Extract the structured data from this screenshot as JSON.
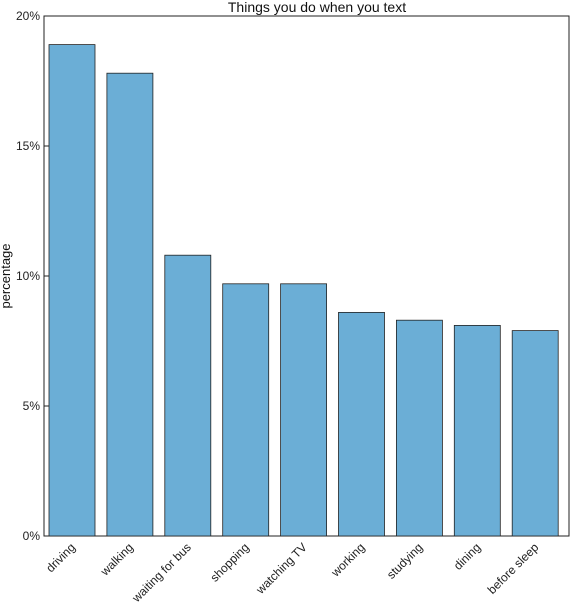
{
  "chart_data": {
    "type": "bar",
    "title": "Things you do when you text",
    "xlabel": "",
    "ylabel": "percentage",
    "categories": [
      "driving",
      "walking",
      "waiting for bus",
      "shopping",
      "watching TV",
      "working",
      "studying",
      "dining",
      "before sleep"
    ],
    "values": [
      18.9,
      17.8,
      10.8,
      9.7,
      9.7,
      8.6,
      8.3,
      8.1,
      7.9
    ],
    "ylim": [
      0,
      20
    ],
    "yticks": [
      0,
      5,
      10,
      15,
      20
    ],
    "ytick_labels": [
      "0%",
      "5%",
      "10%",
      "15%",
      "20%"
    ],
    "grid": false,
    "bar_color": "#6baed6",
    "bar_edge_color": "#222222"
  }
}
